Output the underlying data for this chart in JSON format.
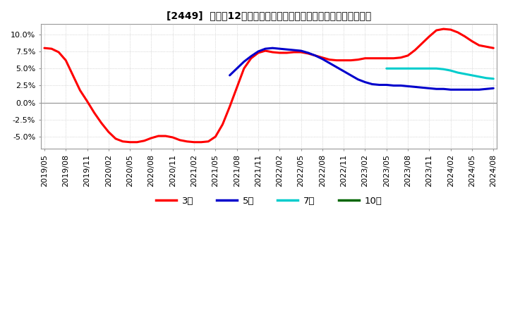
{
  "title": "[2449]  売上高12か月移動合計の対前年同期増減率の平均値の推移",
  "ylim": [
    -0.068,
    0.115
  ],
  "yticks": [
    -0.05,
    -0.025,
    0.0,
    0.025,
    0.05,
    0.075,
    0.1
  ],
  "background_color": "#ffffff",
  "plot_background": "#ffffff",
  "grid_color": "#bbbbbb",
  "series": {
    "3年": {
      "color": "#ff0000",
      "lw": 2.2,
      "x": [
        0,
        1,
        2,
        3,
        4,
        5,
        6,
        7,
        8,
        9,
        10,
        11,
        12,
        13,
        14,
        15,
        16,
        17,
        18,
        19,
        20,
        21,
        22,
        23,
        24,
        25,
        26,
        27,
        28,
        29,
        30,
        31,
        32,
        33,
        34,
        35,
        36,
        37,
        38,
        39,
        40,
        41,
        42,
        43,
        44,
        45,
        46,
        47,
        48,
        49,
        50,
        51,
        52,
        53,
        54,
        55,
        56,
        57,
        58,
        59,
        60,
        61,
        62,
        63
      ],
      "y": [
        0.08,
        0.079,
        0.074,
        0.062,
        0.04,
        0.018,
        0.002,
        -0.015,
        -0.03,
        -0.043,
        -0.053,
        -0.057,
        -0.058,
        -0.058,
        -0.056,
        -0.052,
        -0.049,
        -0.049,
        -0.051,
        -0.055,
        -0.057,
        -0.058,
        -0.058,
        -0.057,
        -0.05,
        -0.032,
        -0.006,
        0.022,
        0.05,
        0.065,
        0.073,
        0.076,
        0.074,
        0.073,
        0.073,
        0.074,
        0.074,
        0.072,
        0.069,
        0.066,
        0.063,
        0.062,
        0.062,
        0.062,
        0.063,
        0.065,
        0.065,
        0.065,
        0.065,
        0.065,
        0.066,
        0.069,
        0.077,
        0.087,
        0.097,
        0.106,
        0.108,
        0.107,
        0.103,
        0.097,
        0.09,
        0.084,
        0.082,
        0.08
      ]
    },
    "5年": {
      "color": "#0000cc",
      "lw": 2.2,
      "x": [
        26,
        27,
        28,
        29,
        30,
        31,
        32,
        33,
        34,
        35,
        36,
        37,
        38,
        39,
        40,
        41,
        42,
        43,
        44,
        45,
        46,
        47,
        48,
        49,
        50,
        51,
        52,
        53,
        54,
        55,
        56,
        57,
        58,
        59,
        60,
        61,
        62,
        63
      ],
      "y": [
        0.04,
        0.05,
        0.06,
        0.068,
        0.075,
        0.079,
        0.08,
        0.079,
        0.078,
        0.077,
        0.076,
        0.073,
        0.069,
        0.064,
        0.058,
        0.052,
        0.046,
        0.04,
        0.034,
        0.03,
        0.027,
        0.026,
        0.026,
        0.025,
        0.025,
        0.024,
        0.023,
        0.022,
        0.021,
        0.02,
        0.02,
        0.019,
        0.019,
        0.019,
        0.019,
        0.019,
        0.02,
        0.021
      ]
    },
    "7年": {
      "color": "#00cccc",
      "lw": 2.2,
      "x": [
        48,
        49,
        50,
        51,
        52,
        53,
        54,
        55,
        56,
        57,
        58,
        59,
        60,
        61,
        62,
        63
      ],
      "y": [
        0.05,
        0.05,
        0.05,
        0.05,
        0.05,
        0.05,
        0.05,
        0.05,
        0.049,
        0.047,
        0.044,
        0.042,
        0.04,
        0.038,
        0.036,
        0.035
      ]
    },
    "10年": {
      "color": "#006600",
      "lw": 2.2,
      "x": [],
      "y": []
    }
  },
  "n_points": 64,
  "x_labels": [
    "2019/05",
    "2019/08",
    "2019/11",
    "2020/02",
    "2020/05",
    "2020/08",
    "2020/11",
    "2021/02",
    "2021/05",
    "2021/08",
    "2021/11",
    "2022/02",
    "2022/05",
    "2022/08",
    "2022/11",
    "2023/02",
    "2023/05",
    "2023/08",
    "2023/11",
    "2024/02",
    "2024/05",
    "2024/08"
  ],
  "x_label_indices": [
    0,
    3,
    6,
    9,
    12,
    15,
    18,
    21,
    24,
    27,
    30,
    33,
    36,
    39,
    42,
    45,
    48,
    51,
    54,
    57,
    60,
    63
  ],
  "legend": [
    {
      "label": "3年",
      "color": "#ff0000"
    },
    {
      "label": "5年",
      "color": "#0000cc"
    },
    {
      "label": "7年",
      "color": "#00cccc"
    },
    {
      "label": "10年",
      "color": "#006600"
    }
  ]
}
